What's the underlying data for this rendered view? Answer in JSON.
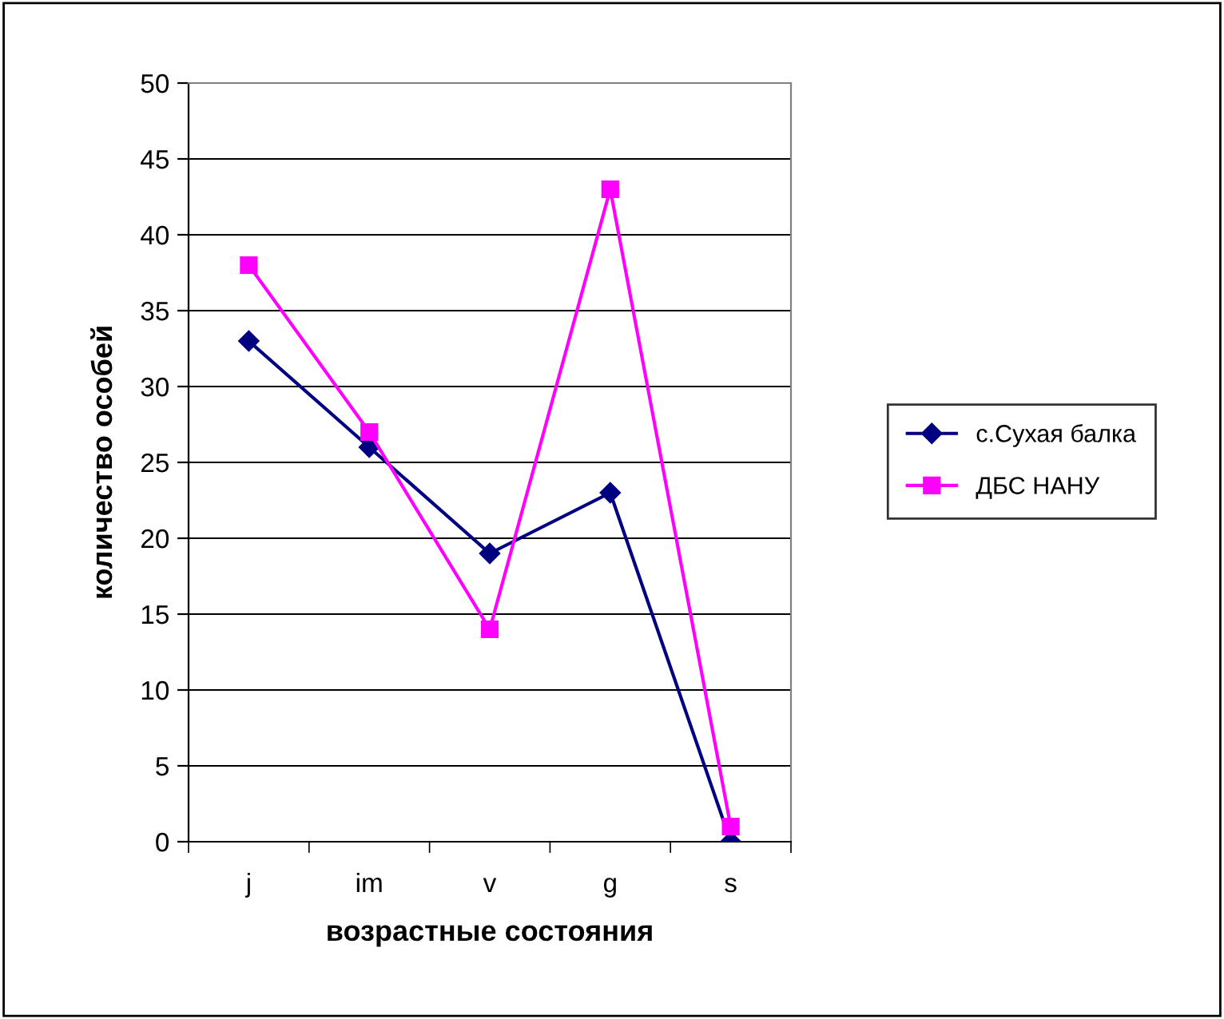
{
  "chart_data": {
    "type": "line",
    "xlabel": "возрастные состояния",
    "ylabel": "количество особей",
    "categories": [
      "j",
      "im",
      "v",
      "g",
      "s"
    ],
    "series": [
      {
        "name": "с.Сухая балка",
        "color": "#000080",
        "marker": "diamond",
        "values": [
          33,
          26,
          19,
          23,
          0
        ]
      },
      {
        "name": "ДБС НАНУ",
        "color": "#ff00ff",
        "marker": "square",
        "values": [
          38,
          27,
          14,
          43,
          1
        ]
      }
    ],
    "ylim": [
      0,
      50
    ],
    "yticks": [
      0,
      5,
      10,
      15,
      20,
      25,
      30,
      35,
      40,
      45,
      50
    ],
    "grid": "y",
    "legend": "right",
    "line_style": "solid"
  }
}
